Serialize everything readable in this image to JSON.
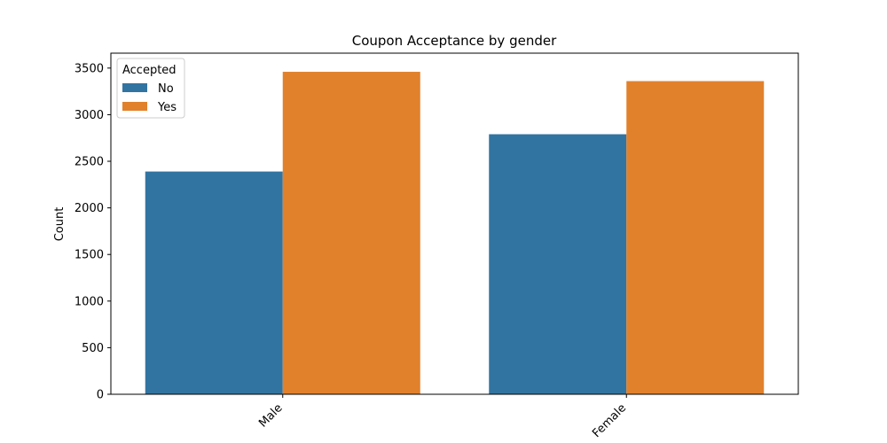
{
  "chart_data": {
    "type": "bar",
    "title": "Coupon Acceptance by gender",
    "xlabel": "",
    "ylabel": "Count",
    "categories": [
      "Male",
      "Female"
    ],
    "series": [
      {
        "name": "No",
        "color": "#3274a1",
        "values": [
          2390,
          2790
        ]
      },
      {
        "name": "Yes",
        "color": "#e1812c",
        "values": [
          3460,
          3360
        ]
      }
    ],
    "ylim": [
      0,
      3660
    ],
    "yticks": [
      0,
      500,
      1000,
      1500,
      2000,
      2500,
      3000,
      3500
    ],
    "legend": {
      "title": "Accepted",
      "placement": "top-left"
    },
    "grid": false
  }
}
